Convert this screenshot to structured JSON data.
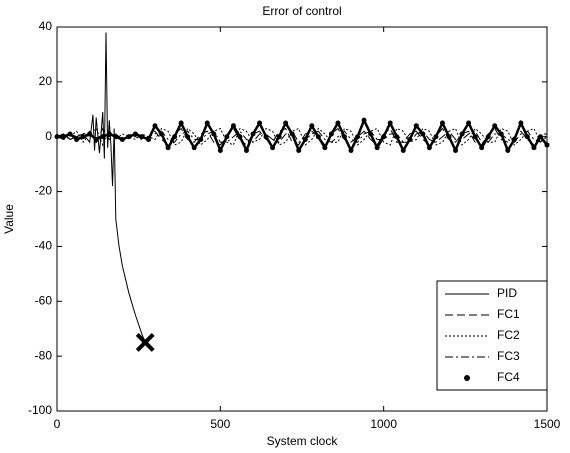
{
  "chart_data": {
    "type": "line",
    "title": "Error of control",
    "x_label": "System clock",
    "y_label": "Value",
    "x": [
      0,
      20,
      40,
      60,
      80,
      100,
      120,
      140,
      160,
      180,
      200,
      220,
      240,
      260,
      280,
      300,
      320,
      340,
      360,
      380,
      400,
      420,
      440,
      460,
      480,
      500,
      520,
      540,
      560,
      580,
      600,
      620,
      640,
      660,
      680,
      700,
      720,
      740,
      760,
      780,
      800,
      820,
      840,
      860,
      880,
      900,
      920,
      940,
      960,
      980,
      1000,
      1020,
      1040,
      1060,
      1080,
      1100,
      1120,
      1140,
      1160,
      1180,
      1200,
      1220,
      1240,
      1260,
      1280,
      1300,
      1320,
      1340,
      1360,
      1380,
      1400,
      1420,
      1440,
      1460,
      1480,
      1500
    ],
    "series": [
      {
        "name": "PID",
        "color": "#000000",
        "linestyle": "solid",
        "x": [
          0,
          20,
          40,
          60,
          80,
          100,
          110,
          115,
          120,
          130,
          140,
          145,
          150,
          155,
          160,
          165,
          170,
          175,
          180,
          190,
          200,
          220,
          240,
          260,
          270
        ],
        "values": [
          0,
          1,
          -1,
          0,
          1,
          -2,
          8,
          -5,
          7,
          -6,
          9,
          -8,
          38,
          -4,
          6,
          -3,
          -18,
          3,
          -30,
          -40,
          -47,
          -57,
          -65,
          -72,
          -75
        ]
      },
      {
        "name": "FC1",
        "color": "#000000",
        "linestyle": "dashed",
        "values": [
          0,
          1,
          -1,
          0,
          1,
          2,
          -2,
          3,
          -1,
          1,
          -1,
          0,
          1,
          -1,
          0,
          2,
          -1,
          -3,
          1,
          3,
          -1,
          -2,
          1,
          2,
          -2,
          -3,
          0,
          3,
          -1,
          -3,
          1,
          2,
          -1,
          -2,
          2,
          3,
          -2,
          -3,
          1,
          2,
          0,
          -3,
          1,
          3,
          -1,
          -2,
          0,
          2,
          -1,
          -3,
          1,
          3,
          -2,
          -2,
          1,
          2,
          -1,
          -3,
          0,
          3,
          -1,
          -2,
          1,
          2,
          -2,
          -3,
          1,
          3,
          -1,
          -2,
          0,
          2,
          -1,
          -3,
          1,
          1
        ]
      },
      {
        "name": "FC2",
        "color": "#000000",
        "linestyle": "dotted",
        "values": [
          1,
          -1,
          0,
          2,
          -2,
          1,
          3,
          -3,
          2,
          -1,
          1,
          0,
          -1,
          1,
          0,
          -1,
          3,
          2,
          -3,
          -2,
          3,
          1,
          -3,
          -1,
          2,
          3,
          -2,
          -3,
          3,
          2,
          -2,
          -1,
          3,
          2,
          -3,
          -2,
          2,
          3,
          -3,
          -1,
          3,
          1,
          -2,
          -2,
          3,
          2,
          -3,
          -1,
          2,
          3,
          -2,
          -3,
          3,
          2,
          -2,
          -1,
          3,
          2,
          -3,
          -2,
          2,
          3,
          -3,
          -1,
          3,
          1,
          -2,
          -2,
          3,
          2,
          -3,
          -1,
          2,
          3,
          -2,
          0
        ]
      },
      {
        "name": "FC3",
        "color": "#000000",
        "linestyle": "dashdot",
        "values": [
          0,
          -1,
          1,
          0,
          -1,
          2,
          -2,
          1,
          0,
          1,
          -1,
          1,
          0,
          -1,
          0,
          1,
          2,
          -1,
          -2,
          1,
          2,
          -1,
          -1,
          1,
          2,
          -2,
          -2,
          0,
          2,
          -1,
          -2,
          1,
          1,
          -1,
          -2,
          1,
          2,
          -2,
          -1,
          1,
          2,
          -1,
          -2,
          0,
          2,
          -1,
          -2,
          1,
          2,
          -1,
          -1,
          1,
          1,
          -2,
          -2,
          1,
          2,
          -1,
          -2,
          0,
          2,
          -1,
          -1,
          1,
          2,
          -2,
          -2,
          1,
          1,
          -1,
          -2,
          1,
          2,
          -1,
          -2,
          1
        ]
      },
      {
        "name": "FC4",
        "color": "#000000",
        "linestyle": "markers",
        "values": [
          0,
          0,
          1,
          -1,
          0,
          1,
          -1,
          0,
          1,
          0,
          -1,
          0,
          1,
          0,
          -1,
          4,
          1,
          -4,
          0,
          5,
          0,
          -4,
          -1,
          5,
          1,
          -5,
          0,
          4,
          0,
          -5,
          1,
          5,
          0,
          -4,
          0,
          5,
          1,
          -5,
          -1,
          4,
          0,
          -4,
          1,
          5,
          0,
          -5,
          0,
          6,
          1,
          -4,
          0,
          5,
          0,
          -5,
          -1,
          4,
          1,
          -4,
          0,
          5,
          0,
          -5,
          1,
          5,
          0,
          -4,
          0,
          4,
          1,
          -5,
          -1,
          5,
          0,
          -4,
          0,
          -3
        ]
      }
    ],
    "xlim": [
      0,
      1500
    ],
    "xticks": [
      0,
      500,
      1000,
      1500
    ],
    "ylim": [
      -100,
      40
    ],
    "yticks": [
      -100,
      -80,
      -60,
      -40,
      -20,
      0,
      20,
      40
    ],
    "grid": false,
    "legend": "southeast"
  }
}
